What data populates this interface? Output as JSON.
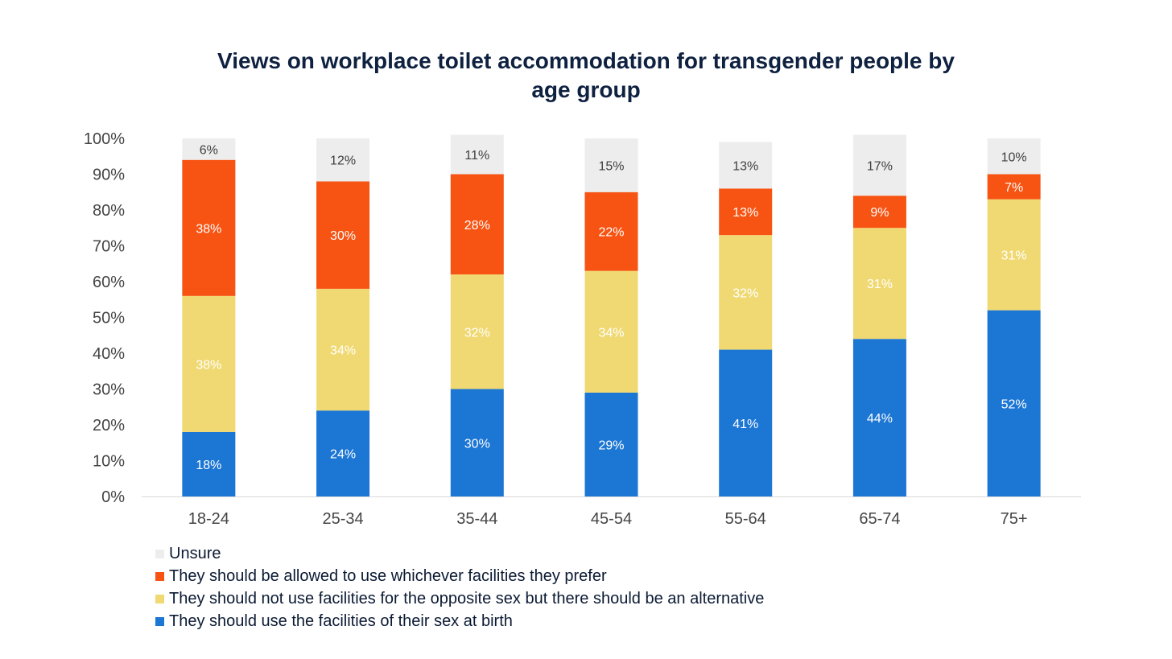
{
  "chart_data": {
    "type": "bar",
    "stacked": true,
    "title_lines": [
      "Views on workplace toilet accommodation for transgender people by",
      "age group"
    ],
    "categories": [
      "18-24",
      "25-34",
      "35-44",
      "45-54",
      "55-64",
      "65-74",
      "75+"
    ],
    "ylim": [
      0,
      100
    ],
    "yticks": [
      "0%",
      "10%",
      "20%",
      "30%",
      "40%",
      "50%",
      "60%",
      "70%",
      "80%",
      "90%",
      "100%"
    ],
    "series": [
      {
        "name": "They should use the facilities of their sex at birth",
        "color": "#1c76d4",
        "values": [
          18,
          24,
          30,
          29,
          41,
          44,
          52
        ]
      },
      {
        "name": "They should not use facilities for the opposite sex but there should be an alternative",
        "color": "#f0d972",
        "values": [
          38,
          34,
          32,
          34,
          32,
          31,
          31
        ]
      },
      {
        "name": "They should be allowed to use whichever facilities they prefer",
        "color": "#f75312",
        "values": [
          38,
          30,
          28,
          22,
          13,
          9,
          7
        ]
      },
      {
        "name": "Unsure",
        "color": "#ededed",
        "values": [
          6,
          12,
          11,
          15,
          13,
          17,
          10
        ]
      }
    ],
    "legend_order": [
      3,
      2,
      1,
      0
    ],
    "legend_position": "bottom-left",
    "grid": false
  }
}
